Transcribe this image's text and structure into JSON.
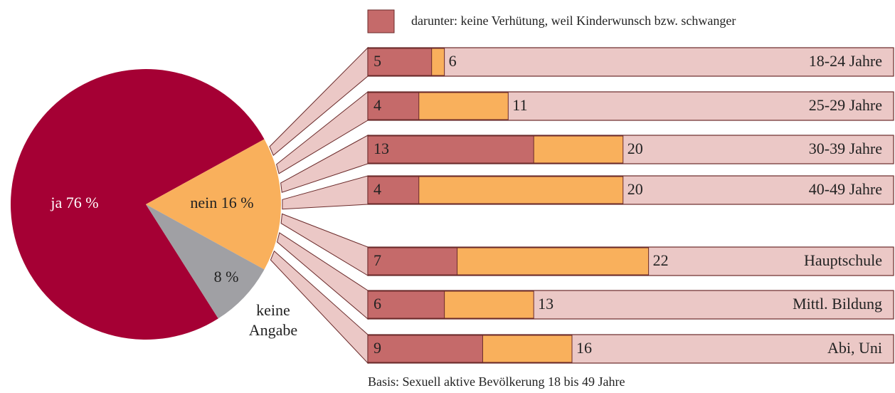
{
  "chart_data": [
    {
      "type": "pie",
      "categories": [
        null,
        null,
        "keine Angabe"
      ],
      "values": [
        76,
        16,
        8
      ],
      "value_labels": [
        "ja 76 %",
        "nein 16 %",
        "8 %"
      ],
      "colors": [
        "#a50034",
        "#f9b05c",
        "#a0a0a4"
      ]
    },
    {
      "type": "barh",
      "categories": [
        "18-24 Jahre",
        "25-29 Jahre",
        "30-39 Jahre",
        "40-49 Jahre",
        "Hauptschule",
        "Mittl. Bildung",
        "Abi, Uni"
      ],
      "series": [
        {
          "name": null,
          "color": "#f9b05c",
          "values": [
            6,
            11,
            20,
            20,
            22,
            13,
            16
          ]
        },
        {
          "name": "darunter: keine Verhütung, weil Kinderwunsch bzw. schwanger",
          "color": "#c56a6a",
          "values": [
            5,
            4,
            13,
            4,
            7,
            6,
            9
          ]
        }
      ],
      "xlim": [
        0,
        41.2
      ],
      "note": "Basis: Sexuell aktive Bevölkerung 18 bis 49 Jahre"
    }
  ]
}
